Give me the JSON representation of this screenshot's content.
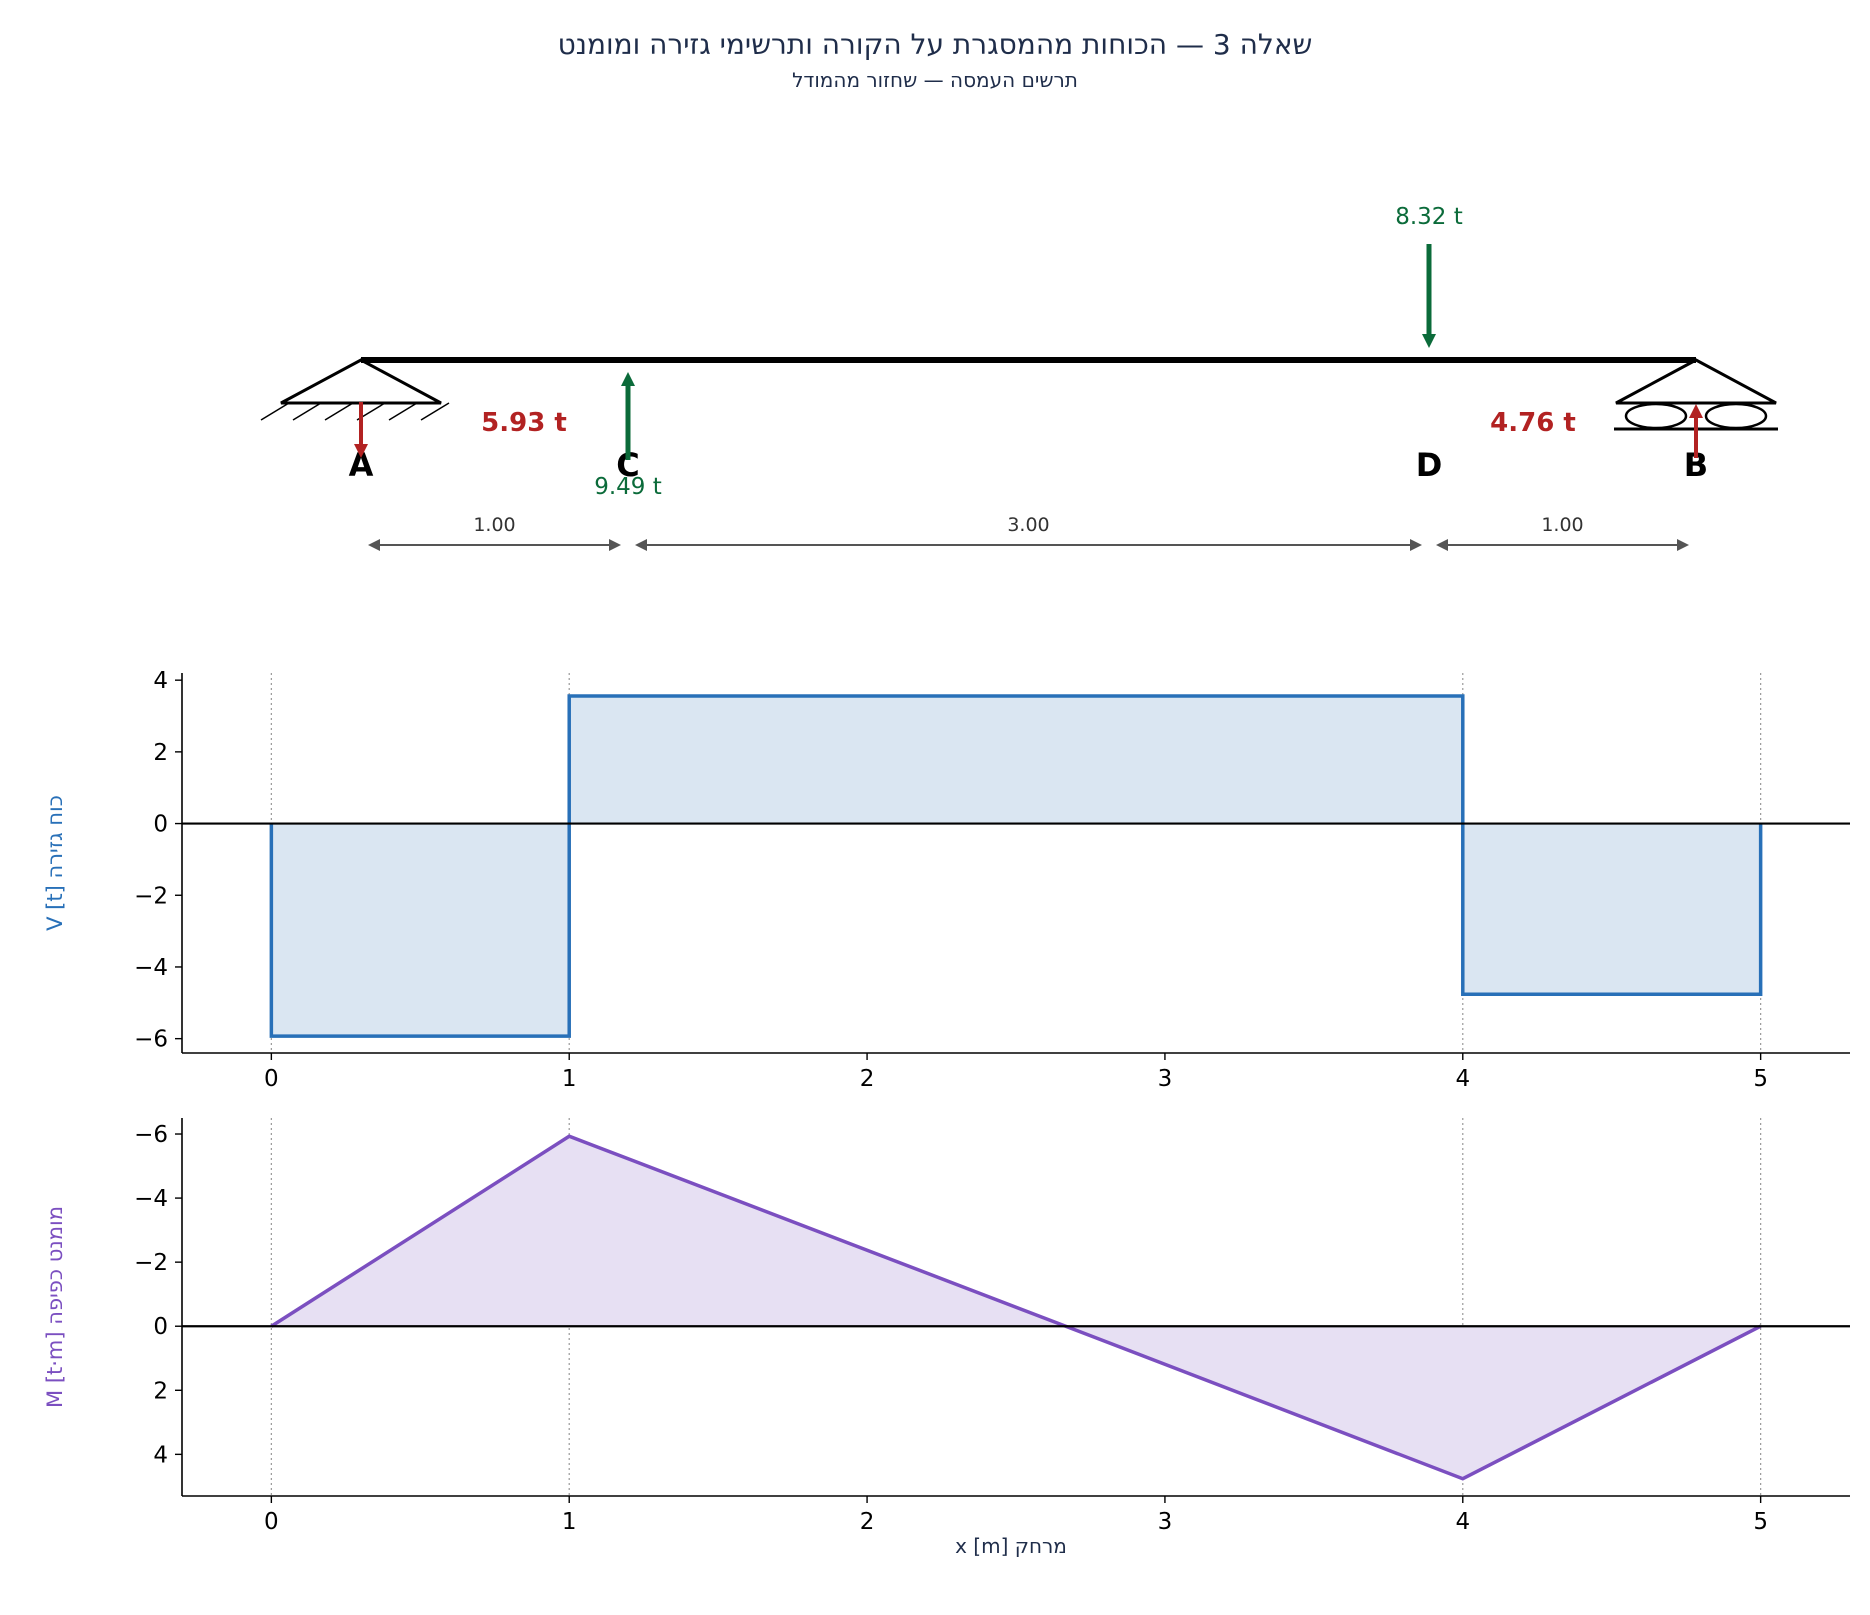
{
  "title": "שאלה 3 — הכוחות מהמסגרת על הקורה ותרשימי גזירה ומומנט",
  "subtitle": "תרשים העמסה — שחזור מהמודל",
  "beam": {
    "points": [
      {
        "name": "A",
        "x": 0
      },
      {
        "name": "C",
        "x": 1
      },
      {
        "name": "D",
        "x": 4
      },
      {
        "name": "B",
        "x": 5
      }
    ],
    "loads": [
      {
        "at": 1,
        "direction": "up",
        "label": "9.49 t",
        "color": "#0b6b3a"
      },
      {
        "at": 4,
        "direction": "down",
        "label": "8.32 t",
        "color": "#0b6b3a"
      }
    ],
    "reactions": [
      {
        "at": 0,
        "direction": "down",
        "label": "5.93 t",
        "color": "#b22222"
      },
      {
        "at": 5,
        "direction": "up",
        "label": "4.76 t",
        "color": "#b22222"
      }
    ],
    "dimensions": [
      {
        "from": 0,
        "to": 1,
        "label": "1.00"
      },
      {
        "from": 1,
        "to": 4,
        "label": "3.00"
      },
      {
        "from": 4,
        "to": 5,
        "label": "1.00"
      }
    ],
    "supports": {
      "A": "pin",
      "B": "roller"
    }
  },
  "chart_data": [
    {
      "type": "area",
      "name": "shear",
      "ylabel": "V [t]  כוח גזירה",
      "color": "#2870b8",
      "fill": "#dae6f2",
      "x": [
        0,
        0,
        1,
        1,
        4,
        4,
        5,
        5
      ],
      "y": [
        0,
        -5.93,
        -5.93,
        3.56,
        3.56,
        -4.76,
        -4.76,
        0
      ],
      "xlim": [
        -0.3,
        5.3
      ],
      "ylim": [
        -6.4,
        4.2
      ],
      "xticks": [
        0,
        1,
        2,
        3,
        4,
        5
      ],
      "xtick_labels": [
        "0",
        "1",
        "2",
        "3",
        "4",
        "5"
      ],
      "yticks": [
        4,
        2,
        0,
        -2,
        -4,
        -6
      ],
      "ytick_labels": [
        "4",
        "2",
        "0",
        "−2",
        "−4",
        "−6"
      ],
      "vlines": [
        0,
        1,
        4,
        5
      ],
      "grid": false
    },
    {
      "type": "area",
      "name": "moment",
      "ylabel": "M [t·m]  מומנט כפיפה",
      "xlabel": "x [m]  מרחק",
      "color": "#7b4fc0",
      "fill": "#e7e0f3",
      "inverted_y": true,
      "x": [
        0,
        1,
        2.667,
        4,
        5
      ],
      "y": [
        0,
        -5.93,
        0,
        4.76,
        0
      ],
      "xlim": [
        -0.3,
        5.3
      ],
      "ylim": [
        5.3,
        -6.5
      ],
      "xticks": [
        0,
        1,
        2,
        3,
        4,
        5
      ],
      "xtick_labels": [
        "0",
        "1",
        "2",
        "3",
        "4",
        "5"
      ],
      "yticks": [
        -6,
        -4,
        -2,
        0,
        2,
        4
      ],
      "ytick_labels": [
        "−6",
        "−4",
        "−2",
        "0",
        "2",
        "4"
      ],
      "vlines": [
        0,
        1,
        4,
        5
      ],
      "grid": false
    }
  ]
}
